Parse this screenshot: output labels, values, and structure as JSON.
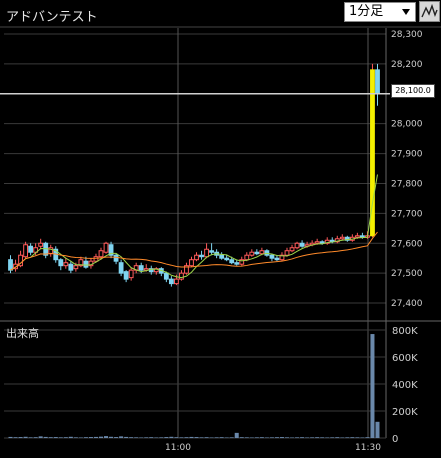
{
  "header": {
    "title": "アドバンテスト",
    "interval_select": "1分足",
    "chart_type_icon": "line-chart-icon"
  },
  "price_axis": {
    "labels": [
      "28,300",
      "28,200",
      "28,100",
      "28,000",
      "27,900",
      "27,800",
      "27,700",
      "27,600",
      "27,500",
      "27,400"
    ],
    "current_price": "28,100.0"
  },
  "volume": {
    "label": "出来高",
    "axis_labels": [
      "800K",
      "600K",
      "400K",
      "200K",
      "0"
    ]
  },
  "time_axis": {
    "labels": [
      "11:00",
      "11:30"
    ]
  },
  "colors": {
    "up": "#ff5a5a",
    "down": "#7fd4f0",
    "ma_short": "#9dd64a",
    "ma_long": "#ff8a2a",
    "volume": "#6a88aa",
    "grid": "#3a3a3a",
    "highlight": "#f4f000"
  },
  "chart_data": {
    "type": "candlestick",
    "ylim": [
      27350,
      28320
    ],
    "candles": [
      [
        27545,
        27510,
        27560,
        27500
      ],
      [
        27515,
        27530,
        27545,
        27505
      ],
      [
        27525,
        27560,
        27575,
        27520
      ],
      [
        27555,
        27595,
        27605,
        27550
      ],
      [
        27590,
        27570,
        27600,
        27560
      ],
      [
        27570,
        27585,
        27600,
        27560
      ],
      [
        27590,
        27600,
        27615,
        27580
      ],
      [
        27600,
        27560,
        27605,
        27550
      ],
      [
        27565,
        27585,
        27595,
        27555
      ],
      [
        27580,
        27545,
        27590,
        27535
      ],
      [
        27545,
        27525,
        27550,
        27510
      ],
      [
        27525,
        27535,
        27550,
        27515
      ],
      [
        27530,
        27510,
        27540,
        27500
      ],
      [
        27515,
        27525,
        27535,
        27505
      ],
      [
        27525,
        27545,
        27555,
        27520
      ],
      [
        27540,
        27520,
        27555,
        27515
      ],
      [
        27525,
        27540,
        27550,
        27515
      ],
      [
        27540,
        27555,
        27565,
        27535
      ],
      [
        27555,
        27575,
        27585,
        27545
      ],
      [
        27570,
        27600,
        27605,
        27565
      ],
      [
        27595,
        27560,
        27605,
        27550
      ],
      [
        27560,
        27540,
        27565,
        27530
      ],
      [
        27535,
        27500,
        27545,
        27490
      ],
      [
        27505,
        27480,
        27510,
        27470
      ],
      [
        27485,
        27510,
        27520,
        27475
      ],
      [
        27510,
        27525,
        27535,
        27500
      ],
      [
        27525,
        27510,
        27535,
        27500
      ],
      [
        27510,
        27515,
        27530,
        27505
      ],
      [
        27515,
        27505,
        27525,
        27495
      ],
      [
        27505,
        27515,
        27520,
        27495
      ],
      [
        27515,
        27500,
        27520,
        27490
      ],
      [
        27500,
        27480,
        27505,
        27470
      ],
      [
        27480,
        27465,
        27490,
        27455
      ],
      [
        27465,
        27480,
        27495,
        27460
      ],
      [
        27480,
        27500,
        27510,
        27475
      ],
      [
        27500,
        27525,
        27535,
        27495
      ],
      [
        27525,
        27545,
        27555,
        27520
      ],
      [
        27545,
        27560,
        27570,
        27540
      ],
      [
        27560,
        27555,
        27575,
        27545
      ],
      [
        27555,
        27580,
        27600,
        27550
      ],
      [
        27575,
        27570,
        27600,
        27560
      ],
      [
        27570,
        27560,
        27580,
        27550
      ],
      [
        27560,
        27550,
        27570,
        27545
      ],
      [
        27550,
        27545,
        27560,
        27540
      ],
      [
        27545,
        27535,
        27555,
        27530
      ],
      [
        27535,
        27530,
        27545,
        27525
      ],
      [
        27530,
        27545,
        27555,
        27525
      ],
      [
        27545,
        27560,
        27570,
        27540
      ],
      [
        27560,
        27570,
        27580,
        27555
      ],
      [
        27570,
        27565,
        27580,
        27560
      ],
      [
        27565,
        27575,
        27585,
        27560
      ],
      [
        27575,
        27560,
        27580,
        27555
      ],
      [
        27560,
        27550,
        27565,
        27540
      ],
      [
        27550,
        27545,
        27560,
        27540
      ],
      [
        27545,
        27560,
        27570,
        27540
      ],
      [
        27560,
        27575,
        27585,
        27555
      ],
      [
        27575,
        27585,
        27595,
        27570
      ],
      [
        27585,
        27600,
        27605,
        27580
      ],
      [
        27600,
        27590,
        27610,
        27585
      ],
      [
        27590,
        27595,
        27605,
        27585
      ],
      [
        27595,
        27600,
        27610,
        27590
      ],
      [
        27600,
        27605,
        27615,
        27595
      ],
      [
        27605,
        27600,
        27610,
        27595
      ],
      [
        27600,
        27610,
        27620,
        27595
      ],
      [
        27610,
        27605,
        27620,
        27600
      ],
      [
        27605,
        27615,
        27625,
        27600
      ],
      [
        27615,
        27620,
        27630,
        27610
      ],
      [
        27620,
        27610,
        27625,
        27605
      ],
      [
        27610,
        27620,
        27630,
        27605
      ],
      [
        27620,
        27625,
        27635,
        27615
      ],
      [
        27625,
        27620,
        27635,
        27615
      ],
      [
        27620,
        27625,
        27640,
        27615
      ],
      [
        27625,
        28180,
        28200,
        27620
      ],
      [
        28180,
        28100,
        28200,
        28060
      ]
    ],
    "volume": [
      8000,
      6000,
      7000,
      9000,
      5000,
      6000,
      12000,
      8000,
      6000,
      7000,
      5000,
      6000,
      9000,
      5000,
      4000,
      6000,
      7000,
      8000,
      10000,
      14000,
      9000,
      7000,
      12000,
      8000,
      6000,
      5000,
      4000,
      5000,
      6000,
      4000,
      5000,
      7000,
      9000,
      6000,
      5000,
      6000,
      8000,
      7000,
      5000,
      6000,
      4000,
      5000,
      6000,
      4000,
      5000,
      38000,
      6000,
      5000,
      4000,
      5000,
      6000,
      4000,
      5000,
      6000,
      7000,
      5000,
      4000,
      5000,
      6000,
      4000,
      5000,
      6000,
      5000,
      4000,
      5000,
      6000,
      4000,
      5000,
      6000,
      5000,
      4000,
      6000,
      770000,
      120000
    ],
    "volume_max": 800000
  }
}
